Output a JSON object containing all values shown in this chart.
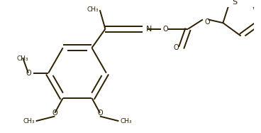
{
  "bg_color": "#ffffff",
  "line_color": "#2d2000",
  "line_width": 1.4,
  "figsize": [
    3.68,
    1.87
  ],
  "dpi": 100,
  "font_size": 7.0,
  "font_color": "#2d2000",
  "text_OMe": "O",
  "text_Me": "CH₃",
  "text_N": "N",
  "text_O": "O",
  "text_S": "S"
}
